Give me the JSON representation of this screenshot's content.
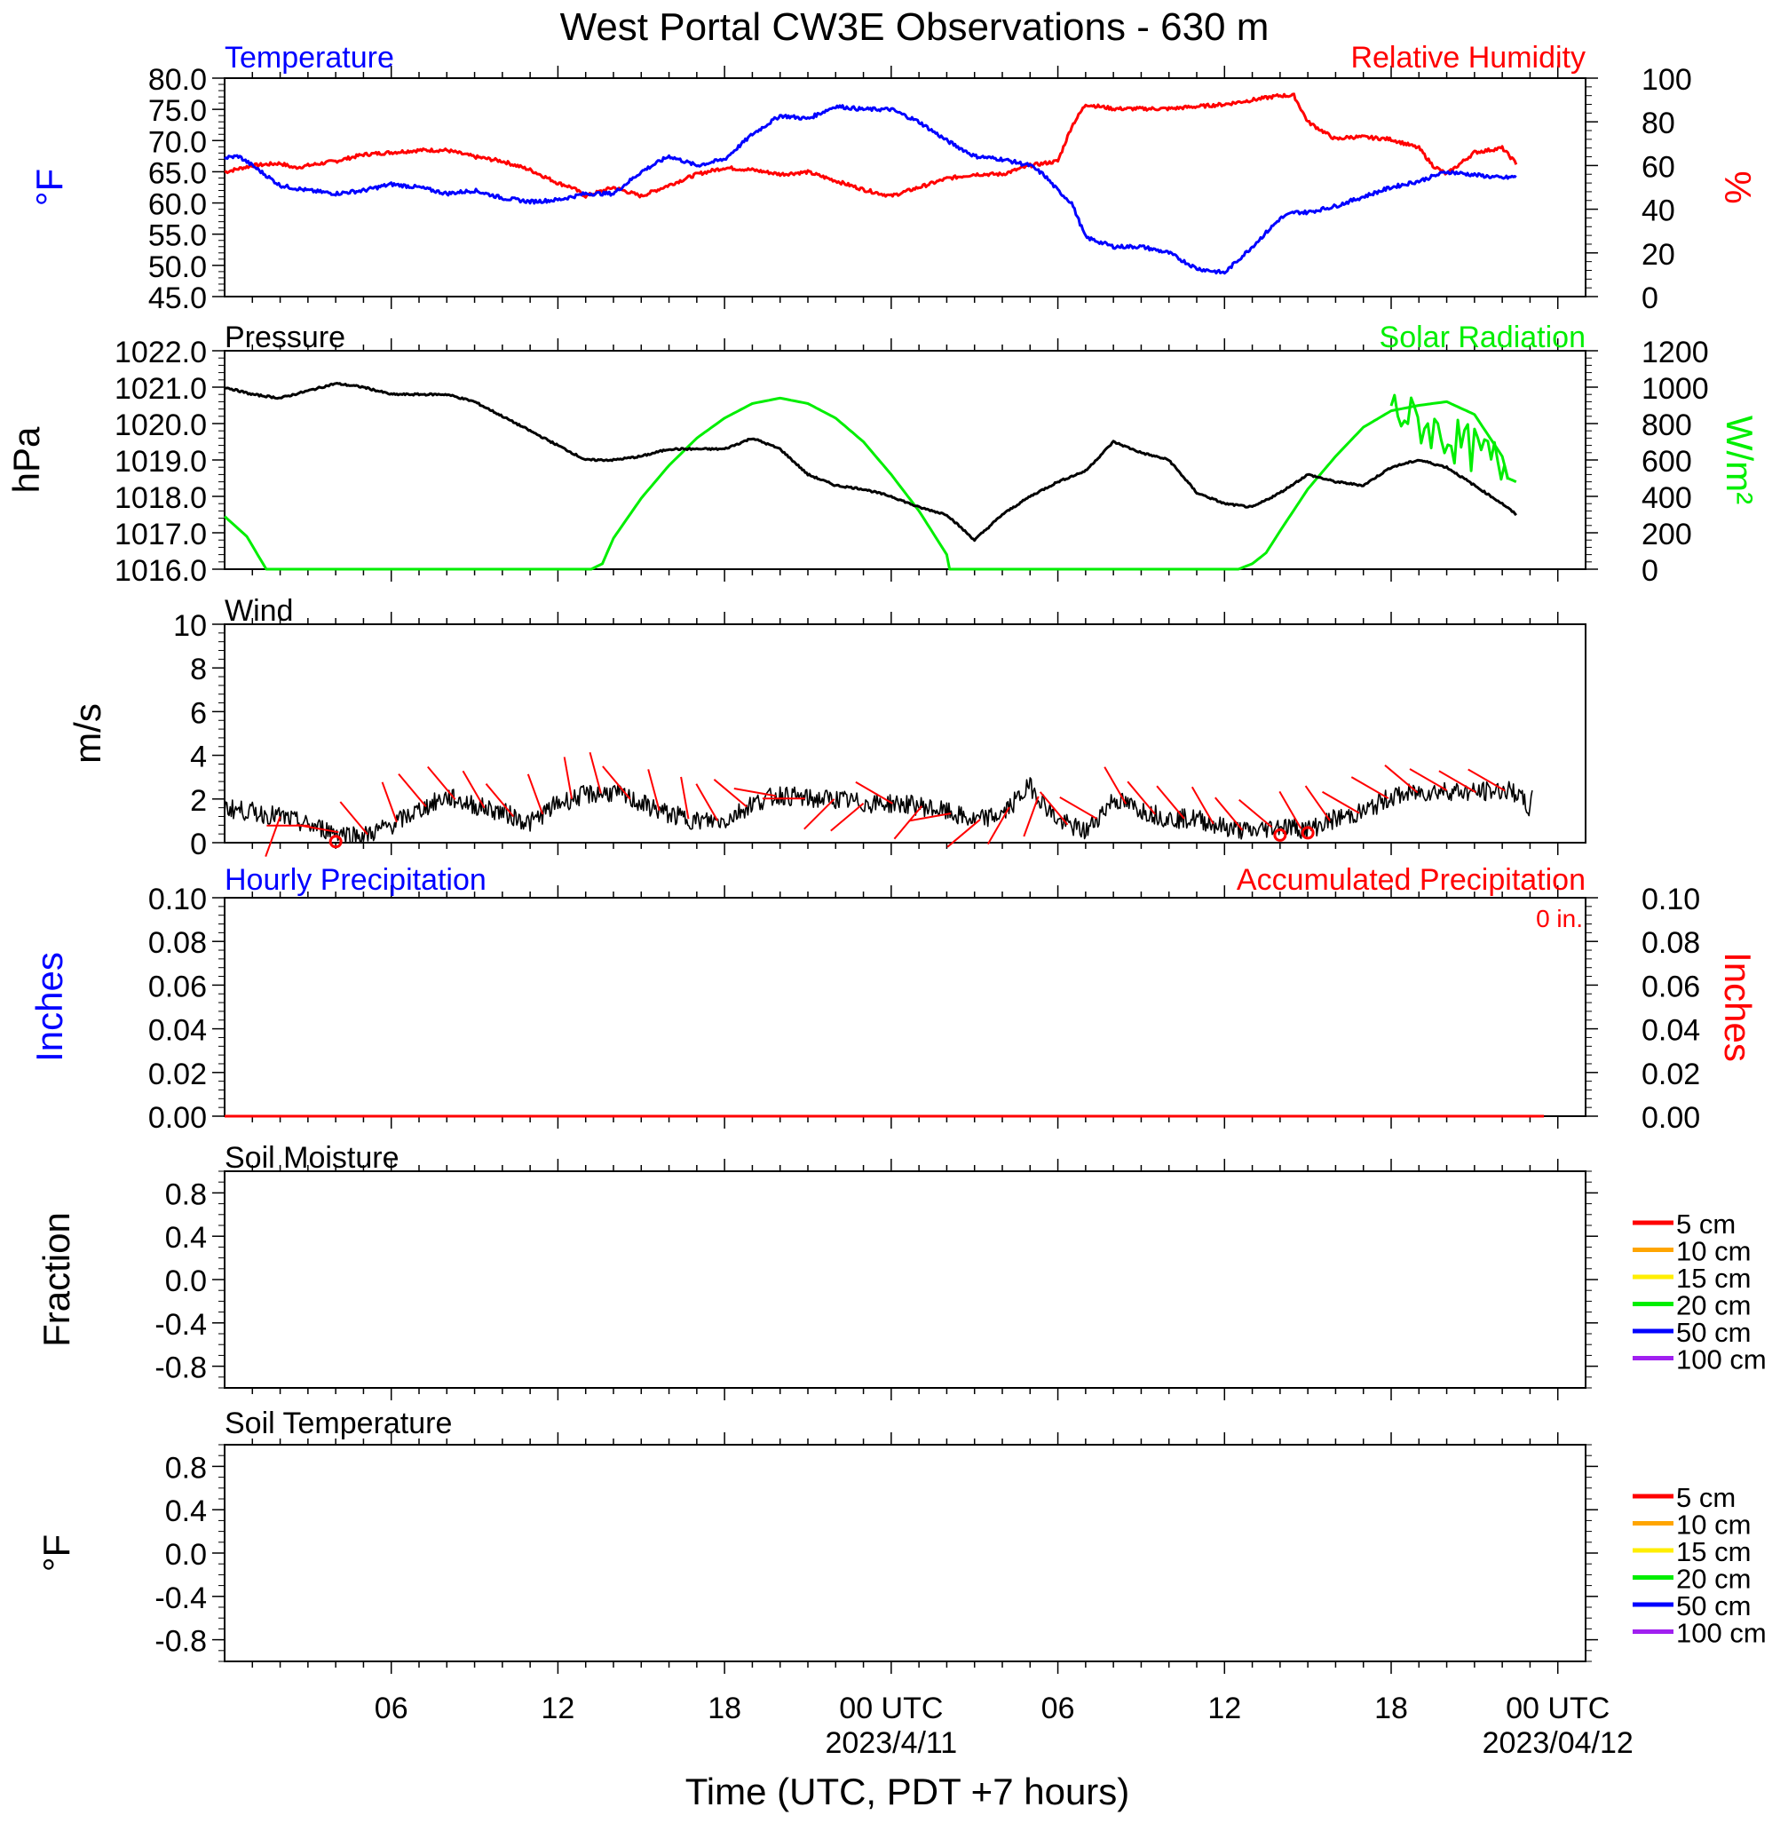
{
  "title": "West Portal CW3E Observations - 630 m",
  "colors": {
    "temperature": "#0000ff",
    "humidity": "#ff0000",
    "pressure": "#000000",
    "solar": "#00ee00",
    "wind": "#000000",
    "barbs": "#ff0000",
    "hourly_precip": "#0000ff",
    "accum_precip": "#ff0000"
  },
  "x_axis": {
    "label": "Time (UTC, PDT +7 hours)",
    "ticks": [
      {
        "hour": 6,
        "label": "06",
        "sub": ""
      },
      {
        "hour": 12,
        "label": "12",
        "sub": ""
      },
      {
        "hour": 18,
        "label": "18",
        "sub": ""
      },
      {
        "hour": 24,
        "label": "00 UTC",
        "sub": "2023/4/11"
      },
      {
        "hour": 30,
        "label": "06",
        "sub": ""
      },
      {
        "hour": 36,
        "label": "12",
        "sub": ""
      },
      {
        "hour": 42,
        "label": "18",
        "sub": ""
      },
      {
        "hour": 48,
        "label": "00 UTC",
        "sub": "2023/04/12"
      }
    ]
  },
  "panels": {
    "temp": {
      "left_title": "Temperature",
      "right_title": "Relative Humidity",
      "left_unit": "°F",
      "right_unit": "%",
      "left_ticks": [
        "80.0",
        "75.0",
        "70.0",
        "65.0",
        "60.0",
        "55.0",
        "50.0",
        "45.0"
      ],
      "right_ticks": [
        "100",
        "80",
        "60",
        "40",
        "20",
        "0"
      ]
    },
    "pressure": {
      "left_title": "Pressure",
      "right_title": "Solar Radiation",
      "left_unit": "hPa",
      "right_unit": "W/m²",
      "left_ticks": [
        "1022.0",
        "1021.0",
        "1020.0",
        "1019.0",
        "1018.0",
        "1017.0",
        "1016.0"
      ],
      "right_ticks": [
        "1200",
        "1000",
        "800",
        "600",
        "400",
        "200",
        "0"
      ]
    },
    "wind": {
      "left_title": "Wind",
      "left_unit": "m/s",
      "left_ticks": [
        "10",
        "8",
        "6",
        "4",
        "2",
        "0"
      ]
    },
    "precip": {
      "left_title": "Hourly Precipitation",
      "right_title": "Accumulated Precipitation",
      "total_label": "0 in.",
      "left_unit": "Inches",
      "right_unit": "Inches",
      "left_ticks": [
        "0.10",
        "0.08",
        "0.06",
        "0.04",
        "0.02",
        "0.00"
      ],
      "right_ticks": [
        "0.10",
        "0.08",
        "0.06",
        "0.04",
        "0.02",
        "0.00"
      ]
    },
    "soil_moisture": {
      "left_title": "Soil Moisture",
      "left_unit": "Fraction",
      "left_ticks": [
        "0.8",
        "0.4",
        "0.0",
        "-0.4",
        "-0.8"
      ],
      "legend": [
        {
          "label": "5 cm",
          "color": "#ff0000"
        },
        {
          "label": "10 cm",
          "color": "#ffa500"
        },
        {
          "label": "15 cm",
          "color": "#ffee00"
        },
        {
          "label": "20 cm",
          "color": "#00ee00"
        },
        {
          "label": "50 cm",
          "color": "#0000ff"
        },
        {
          "label": "100 cm",
          "color": "#a020f0"
        }
      ]
    },
    "soil_temp": {
      "left_title": "Soil Temperature",
      "left_unit": "°F",
      "left_ticks": [
        "0.8",
        "0.4",
        "0.0",
        "-0.4",
        "-0.8"
      ],
      "legend": [
        {
          "label": "5 cm",
          "color": "#ff0000"
        },
        {
          "label": "10 cm",
          "color": "#ffa500"
        },
        {
          "label": "15 cm",
          "color": "#ffee00"
        },
        {
          "label": "20 cm",
          "color": "#00ee00"
        },
        {
          "label": "50 cm",
          "color": "#0000ff"
        },
        {
          "label": "100 cm",
          "color": "#a020f0"
        }
      ]
    }
  },
  "chart_data": [
    {
      "type": "line",
      "title": "Temperature",
      "ylabel": "°F",
      "ylim": [
        45,
        80
      ],
      "xlim": [
        0,
        49
      ],
      "x_unit": "hours since 2023-04-10 00 UTC",
      "series": [
        {
          "name": "Temperature",
          "x": [
            0,
            0.5,
            1,
            2,
            3,
            4,
            5,
            6,
            7,
            8,
            9,
            10,
            11,
            12,
            13,
            14,
            15,
            16,
            17,
            18,
            19,
            20,
            21,
            22,
            23,
            24,
            25,
            26,
            27,
            28,
            29,
            29.5,
            30,
            30.5,
            31,
            32,
            33,
            34,
            35,
            36,
            37,
            38,
            38.5,
            39,
            40,
            41,
            42,
            43,
            44,
            45,
            46,
            46.5
          ],
          "y": [
            67.2,
            67.5,
            66,
            62.8,
            62,
            61.5,
            62,
            63,
            62.5,
            61.5,
            62,
            60.8,
            60.2,
            60.5,
            61.5,
            61.5,
            65,
            67.5,
            66,
            67,
            71,
            74,
            73.5,
            75.5,
            75,
            75,
            73,
            70,
            67.5,
            67,
            66,
            64.5,
            62,
            60,
            54.5,
            53,
            53,
            52,
            49.5,
            48.8,
            53,
            57.5,
            58.5,
            58.5,
            59.5,
            61,
            62.5,
            63.5,
            65,
            64.5,
            64,
            64.2
          ]
        }
      ]
    },
    {
      "type": "line",
      "title": "Relative Humidity",
      "ylabel": "%",
      "ylim": [
        0,
        100
      ],
      "series": [
        {
          "name": "Relative Humidity",
          "x": [
            0,
            1,
            2,
            2.5,
            3,
            4,
            5,
            6,
            7,
            8,
            9,
            10,
            11,
            12,
            12.5,
            13,
            14,
            15,
            16,
            17,
            18,
            19,
            20,
            21,
            22,
            23,
            24,
            25,
            26,
            27,
            28,
            29,
            30,
            30.5,
            31,
            32,
            33,
            34,
            35,
            36,
            37,
            38,
            38.5,
            39,
            40,
            40.5,
            41,
            42,
            43,
            43.5,
            44,
            45,
            46,
            46.5
          ],
          "y": [
            57,
            60,
            61,
            59,
            60,
            62,
            65,
            66,
            67,
            67,
            64,
            62,
            58,
            52,
            50,
            46,
            50,
            46,
            51,
            56,
            59,
            58,
            56,
            57,
            53,
            49,
            46,
            50,
            54,
            56,
            56,
            60,
            62,
            78,
            88,
            86,
            86,
            86,
            87,
            88,
            90,
            92,
            92,
            80,
            72,
            73,
            73,
            72,
            68,
            60,
            56,
            66,
            68,
            61
          ]
        }
      ]
    },
    {
      "type": "line",
      "title": "Pressure",
      "ylabel": "hPa",
      "ylim": [
        1016,
        1022
      ],
      "series": [
        {
          "name": "Pressure",
          "x": [
            0,
            1,
            2,
            3,
            4,
            5,
            6,
            7,
            8,
            9,
            10,
            11,
            12,
            13,
            14,
            15,
            16,
            17,
            18,
            19,
            20,
            21,
            22,
            23,
            24,
            25,
            26,
            27,
            28,
            29,
            30,
            31,
            32,
            33,
            34,
            35,
            36,
            37,
            38,
            39,
            40,
            41,
            42,
            43,
            44,
            45,
            46,
            46.5
          ],
          "y": [
            1021,
            1020.8,
            1020.7,
            1020.9,
            1021.1,
            1021,
            1020.8,
            1020.8,
            1020.8,
            1020.6,
            1020.2,
            1019.8,
            1019.4,
            1019,
            1019,
            1019.1,
            1019.3,
            1019.3,
            1019.3,
            1019.6,
            1019.3,
            1018.6,
            1018.3,
            1018.2,
            1018,
            1017.7,
            1017.5,
            1016.8,
            1017.5,
            1018,
            1018.4,
            1018.7,
            1019.5,
            1019.2,
            1019,
            1018.1,
            1017.8,
            1017.7,
            1018.1,
            1018.6,
            1018.4,
            1018.3,
            1018.8,
            1019,
            1018.8,
            1018.3,
            1017.8,
            1017.5
          ]
        }
      ]
    },
    {
      "type": "line",
      "title": "Solar Radiation",
      "ylabel": "W/m²",
      "ylim": [
        0,
        1200
      ],
      "series": [
        {
          "name": "Solar Radiation",
          "x": [
            0,
            0.8,
            1.5,
            13.2,
            13.6,
            14,
            15,
            16,
            17,
            18,
            19,
            20,
            21,
            22,
            23,
            24,
            25,
            26,
            26.1,
            33,
            36,
            36.5,
            37,
            37.5,
            38,
            39,
            40,
            41,
            42,
            43,
            44,
            45,
            46,
            46.2,
            46.5
          ],
          "y": [
            290,
            180,
            0,
            0,
            30,
            170,
            390,
            570,
            720,
            830,
            910,
            940,
            910,
            830,
            700,
            520,
            320,
            80,
            0,
            0,
            0,
            0,
            30,
            90,
            210,
            440,
            620,
            780,
            870,
            900,
            920,
            850,
            620,
            500,
            480
          ]
        }
      ]
    },
    {
      "type": "line",
      "title": "Wind",
      "ylabel": "m/s",
      "ylim": [
        0,
        10
      ],
      "series": [
        {
          "name": "Wind",
          "x": [
            0,
            1,
            2,
            3,
            4,
            5,
            6,
            7,
            8,
            9,
            10,
            11,
            12,
            13,
            14,
            15,
            16,
            17,
            18,
            19,
            20,
            21,
            22,
            23,
            24,
            25,
            26,
            27,
            28,
            29,
            30,
            31,
            32,
            33,
            34,
            35,
            36,
            37,
            38,
            39,
            40,
            41,
            42,
            43,
            44,
            45,
            46,
            46.5,
            47,
            47.1
          ],
          "y": [
            1.6,
            1.4,
            1.2,
            0.8,
            0.5,
            0.3,
            0.8,
            1.5,
            2.1,
            1.7,
            1.4,
            0.9,
            1.8,
            2.2,
            2.3,
            1.8,
            1.3,
            1.0,
            1.0,
            1.8,
            2.2,
            2.0,
            2.0,
            1.8,
            1.8,
            1.7,
            1.4,
            1.0,
            1.3,
            2.6,
            1.0,
            0.5,
            2.0,
            1.5,
            1.1,
            1.1,
            0.7,
            0.5,
            0.8,
            0.6,
            1.1,
            1.4,
            2.1,
            2.3,
            2.4,
            2.3,
            2.4,
            2.3,
            1.5,
            2.1
          ]
        }
      ]
    },
    {
      "type": "line",
      "title": "Hourly Precipitation",
      "ylabel": "Inches",
      "ylim": [
        0,
        0.1
      ],
      "series": [
        {
          "name": "Hourly Precipitation",
          "x": [
            0,
            46.5
          ],
          "y": [
            0,
            0
          ]
        },
        {
          "name": "Accumulated Precipitation",
          "x": [
            0,
            46.5,
            47.5
          ],
          "y": [
            0,
            0,
            0
          ]
        }
      ]
    },
    {
      "type": "line",
      "title": "Soil Moisture",
      "ylabel": "Fraction",
      "ylim": [
        -1,
        1
      ],
      "series": [
        {
          "name": "5 cm",
          "values": []
        },
        {
          "name": "10 cm",
          "values": []
        },
        {
          "name": "15 cm",
          "values": []
        },
        {
          "name": "20 cm",
          "values": []
        },
        {
          "name": "50 cm",
          "values": []
        },
        {
          "name": "100 cm",
          "values": []
        }
      ]
    },
    {
      "type": "line",
      "title": "Soil Temperature",
      "ylabel": "°F",
      "ylim": [
        -1,
        1
      ],
      "series": [
        {
          "name": "5 cm",
          "values": []
        },
        {
          "name": "10 cm",
          "values": []
        },
        {
          "name": "15 cm",
          "values": []
        },
        {
          "name": "20 cm",
          "values": []
        },
        {
          "name": "50 cm",
          "values": []
        },
        {
          "name": "100 cm",
          "values": []
        }
      ]
    }
  ]
}
